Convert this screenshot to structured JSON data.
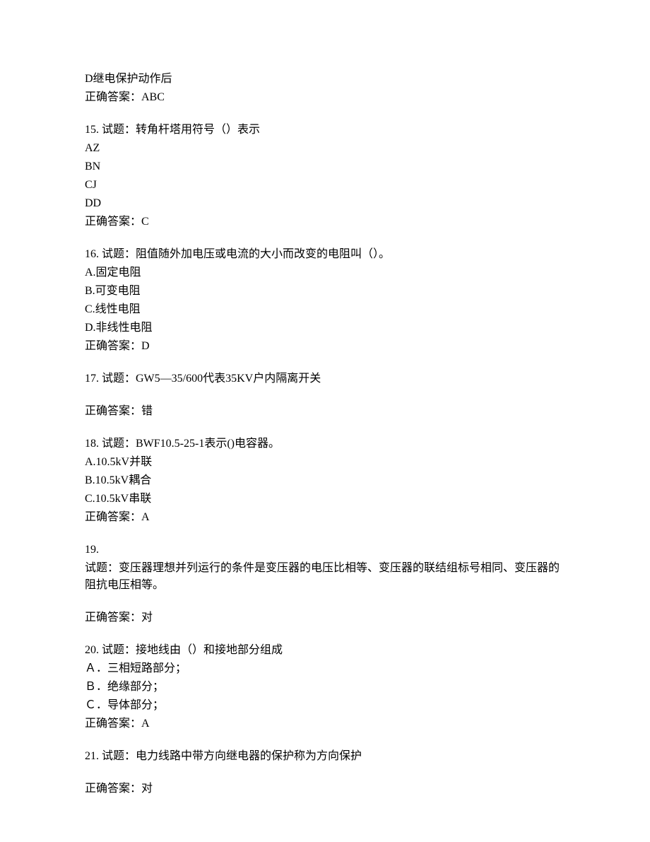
{
  "font_family": "SimSun",
  "font_size": 16,
  "text_color": "#000000",
  "background_color": "#ffffff",
  "orphan": {
    "option_d": "D继电保护动作后",
    "answer": "正确答案：ABC"
  },
  "questions": [
    {
      "number": "15",
      "stem": "15. 试题：转角杆塔用符号（）表示",
      "options": [
        "AZ",
        "BN",
        "CJ",
        "DD"
      ],
      "answer": "正确答案：C"
    },
    {
      "number": "16",
      "stem": "16. 试题：阻值随外加电压或电流的大小而改变的电阻叫（）。",
      "options": [
        "A.固定电阻",
        "B.可变电阻",
        "C.线性电阻",
        "D.非线性电阻"
      ],
      "answer": "正确答案：D"
    },
    {
      "number": "17",
      "stem": "17. 试题：GW5—35/600代表35KV户内隔离开关",
      "options": [],
      "answer": "正确答案：错"
    },
    {
      "number": "18",
      "stem": "18. 试题：BWF10.5-25-1表示()电容器。",
      "options": [
        "A.10.5kV并联",
        "B.10.5kV耦合",
        "C.10.5kV串联"
      ],
      "answer": "正确答案：A"
    },
    {
      "number": "19",
      "stem_prefix": "19.",
      "stem": "试题：变压器理想并列运行的条件是变压器的电压比相等、变压器的联结组标号相同、变压器的阻抗电压相等。",
      "options": [],
      "answer": "正确答案：对"
    },
    {
      "number": "20",
      "stem": "20. 试题：接地线由（）和接地部分组成",
      "options": [
        "Ａ．三相短路部分；",
        "Ｂ．绝缘部分；",
        "Ｃ．导体部分；"
      ],
      "answer": "正确答案：A"
    },
    {
      "number": "21",
      "stem": "21. 试题：电力线路中带方向继电器的保护称为方向保护",
      "options": [],
      "answer": "正确答案：对"
    }
  ]
}
